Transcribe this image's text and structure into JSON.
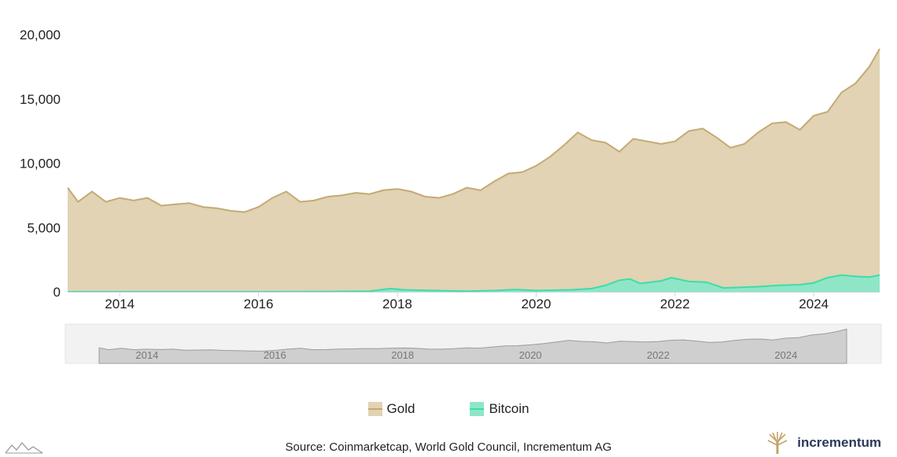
{
  "chart_data": {
    "type": "area",
    "y_ticks": [
      "0",
      "5,000",
      "10,000",
      "15,000",
      "20,000"
    ],
    "x_ticks": [
      "2014",
      "2016",
      "2018",
      "2020",
      "2022",
      "2024"
    ],
    "ylim": [
      0,
      20000
    ],
    "xlim": [
      2013.25,
      2024.95
    ],
    "grid": false,
    "legend_position": "bottom",
    "series": [
      {
        "name": "Gold",
        "color": "#c4aa74",
        "fill": "#e1d3b3",
        "x": [
          2013.25,
          2013.4,
          2013.6,
          2013.8,
          2014.0,
          2014.2,
          2014.4,
          2014.6,
          2014.8,
          2015.0,
          2015.2,
          2015.4,
          2015.6,
          2015.8,
          2016.0,
          2016.2,
          2016.4,
          2016.6,
          2016.8,
          2017.0,
          2017.2,
          2017.4,
          2017.6,
          2017.8,
          2018.0,
          2018.2,
          2018.4,
          2018.6,
          2018.8,
          2019.0,
          2019.2,
          2019.4,
          2019.6,
          2019.8,
          2020.0,
          2020.2,
          2020.4,
          2020.6,
          2020.8,
          2021.0,
          2021.2,
          2021.4,
          2021.6,
          2021.8,
          2022.0,
          2022.2,
          2022.4,
          2022.6,
          2022.8,
          2023.0,
          2023.2,
          2023.4,
          2023.6,
          2023.8,
          2024.0,
          2024.2,
          2024.4,
          2024.6,
          2024.8,
          2024.95
        ],
        "values": [
          8100,
          7000,
          7800,
          7000,
          7300,
          7100,
          7300,
          6700,
          6800,
          6900,
          6600,
          6500,
          6300,
          6200,
          6600,
          7300,
          7800,
          7000,
          7100,
          7400,
          7500,
          7700,
          7600,
          7900,
          8000,
          7800,
          7400,
          7300,
          7600,
          8100,
          7900,
          8600,
          9200,
          9300,
          9800,
          10500,
          11400,
          12400,
          11800,
          11600,
          10900,
          11900,
          11700,
          11500,
          11700,
          12500,
          12700,
          12000,
          11200,
          11500,
          12400,
          13100,
          13200,
          12600,
          13700,
          14000,
          15500,
          16200,
          17500,
          18900
        ]
      },
      {
        "name": "Bitcoin",
        "color": "#3ddcaa",
        "fill": "#8fe6c6",
        "x": [
          2013.25,
          2014.0,
          2015.0,
          2016.0,
          2017.0,
          2017.6,
          2017.9,
          2018.1,
          2018.5,
          2019.0,
          2019.4,
          2019.7,
          2020.0,
          2020.5,
          2020.8,
          2021.0,
          2021.2,
          2021.35,
          2021.5,
          2021.8,
          2021.95,
          2022.2,
          2022.45,
          2022.7,
          2022.95,
          2023.2,
          2023.5,
          2023.8,
          2024.0,
          2024.2,
          2024.4,
          2024.6,
          2024.8,
          2024.95
        ],
        "values": [
          0,
          0,
          0,
          0,
          20,
          50,
          250,
          150,
          100,
          50,
          100,
          180,
          100,
          150,
          250,
          500,
          900,
          1000,
          650,
          850,
          1100,
          800,
          750,
          300,
          350,
          400,
          500,
          550,
          700,
          1100,
          1300,
          1200,
          1150,
          1300
        ]
      }
    ],
    "navigator": {
      "x_ticks": [
        "2014",
        "2016",
        "2018",
        "2020",
        "2022",
        "2024"
      ]
    },
    "source": "Source: Coinmarketcap, World Gold Council, Incrementum AG",
    "brand": "incrementum"
  }
}
